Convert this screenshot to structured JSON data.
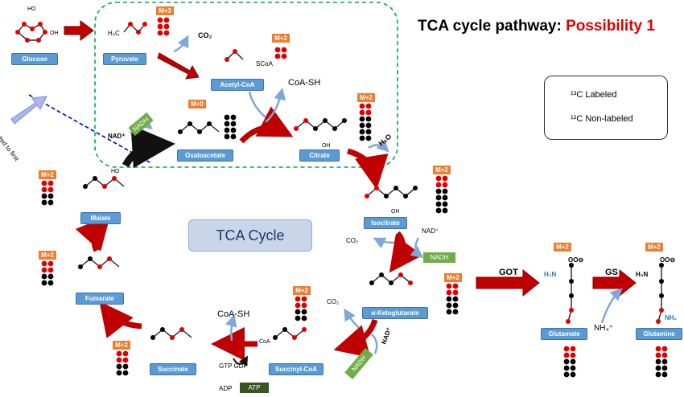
{
  "title": {
    "prefix": "TCA cycle pathway: ",
    "highlight": "Possibility 1"
  },
  "center_label": "TCA Cycle",
  "limited_note": "Limited to first cycle",
  "legend": {
    "labeled": "¹³C Labeled",
    "nonlabeled": "¹²C Non-labeled"
  },
  "colors": {
    "labeled": "#e00000",
    "nonlabeled": "#000000",
    "metabolite_box": "#5b9bd5",
    "mass_badge": "#ed7d31",
    "nadh_box": "#70ad47",
    "atp_box": "#375623",
    "arrow": "#c00000",
    "title_accent": "#e00000",
    "dash_box": "#00a650",
    "cut_line": "#0000cc"
  },
  "metabolites": [
    {
      "id": "glucose",
      "name": "Glucose"
    },
    {
      "id": "pyruvate",
      "name": "Pyruvate",
      "mass": "M+3",
      "pattern": [
        "r",
        "r",
        "r"
      ]
    },
    {
      "id": "acetyl",
      "name": "Acetyl-CoA",
      "mass": "M+2",
      "pattern": [
        "r",
        "r"
      ]
    },
    {
      "id": "oxaloacetate",
      "name": "Oxaloacetate",
      "mass": "M+0",
      "pattern": [
        "k",
        "k",
        "k",
        "k"
      ]
    },
    {
      "id": "citrate",
      "name": "Citrate",
      "mass": "M+2",
      "pattern": [
        "r",
        "r",
        "k",
        "k",
        "k",
        "k"
      ]
    },
    {
      "id": "isocitrate",
      "name": "Isocitrate",
      "mass": "M+2",
      "pattern": [
        "r",
        "r",
        "k",
        "k",
        "k",
        "k"
      ]
    },
    {
      "id": "akg",
      "name": "α-Ketoglutarate",
      "mass": "M+2",
      "pattern": [
        "r",
        "r",
        "k",
        "k",
        "k"
      ]
    },
    {
      "id": "succinylcoa",
      "name": "Succinyl-CoA",
      "mass": "M+2",
      "pattern": [
        "r",
        "r",
        "k",
        "k"
      ]
    },
    {
      "id": "succinate",
      "name": "Succinate",
      "mass": "M+2",
      "pattern": [
        "r",
        "r",
        "k",
        "k"
      ]
    },
    {
      "id": "fumarate",
      "name": "Fumarate",
      "mass": "M+2",
      "pattern": [
        "r",
        "r",
        "k",
        "k"
      ]
    },
    {
      "id": "malate",
      "name": "Malate",
      "mass": "M+2",
      "pattern": [
        "r",
        "r",
        "k",
        "k"
      ]
    },
    {
      "id": "glutamate",
      "name": "Glutamate",
      "mass": "M+2",
      "pattern": [
        "r",
        "r",
        "k",
        "k",
        "k"
      ]
    },
    {
      "id": "glutamine",
      "name": "Glutamine",
      "mass": "M+2",
      "pattern": [
        "r",
        "r",
        "k",
        "k",
        "k"
      ]
    }
  ],
  "cofactors": {
    "co2_1": "CO₂",
    "coa_sh_1": "CoA-SH",
    "nad_1": "NAD⁺",
    "nadh_1": "NADH",
    "h2o": "H₂O",
    "nad_2": "NAD⁺",
    "co2_2": "CO₂",
    "nadh_2": "NADH",
    "co2_3": "CO₂",
    "nad_3": "NAD⁺",
    "nadh_3": "NADH",
    "coa_sh_2": "CoA-SH",
    "gtp_gdp": "GTP GDP",
    "adp": "ADP",
    "atp": "ATP",
    "nh4": "NH₄⁺"
  },
  "enzymes": {
    "got": "GOT",
    "gs": "GS"
  },
  "structure_labels": {
    "h3c": "H₃C",
    "ho": "HO",
    "oh": "OH",
    "o_minus": "⊖",
    "o": "O",
    "scoa": "SCoA",
    "coa": "CoA",
    "h3n": "H₃N",
    "nh2": "NH₂",
    "ooo": "OO⊖",
    "h2": "H₂",
    "c": "C",
    "h": "H",
    "plus": "⊕"
  }
}
